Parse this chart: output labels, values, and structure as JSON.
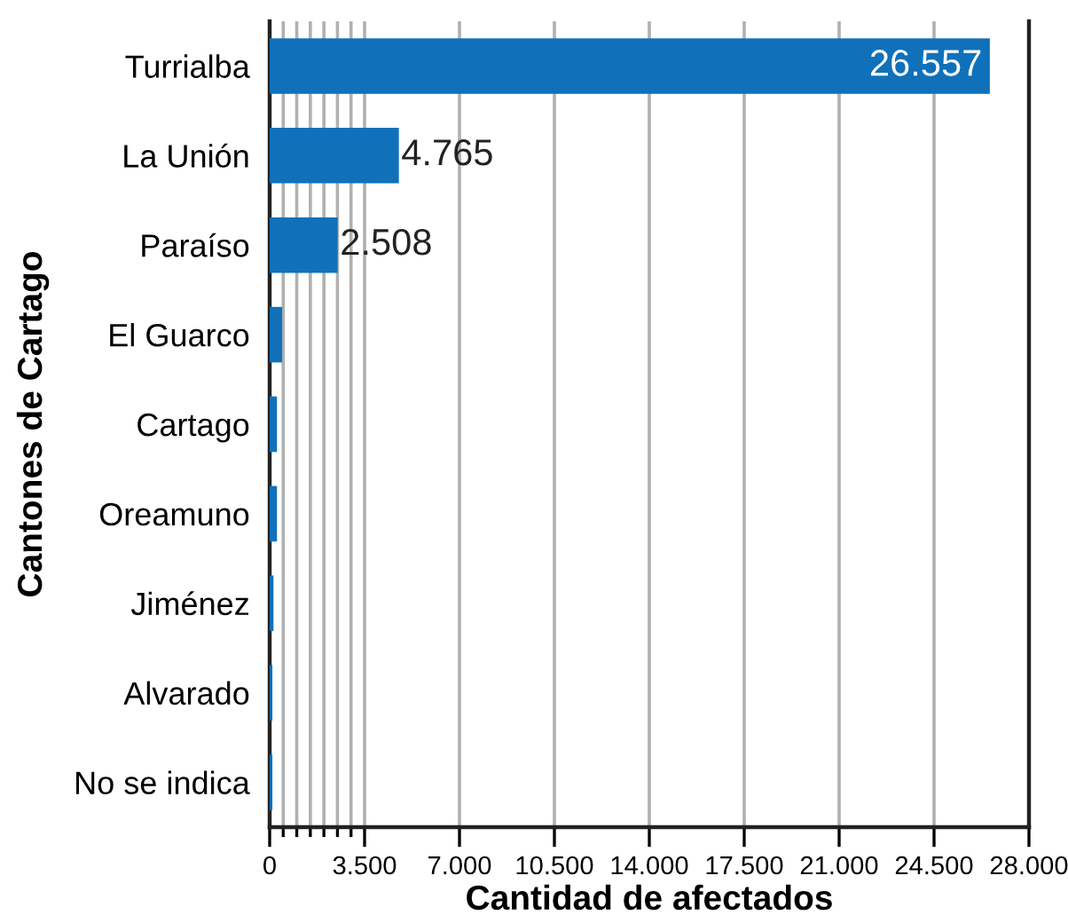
{
  "chart_data": {
    "type": "bar",
    "orientation": "horizontal",
    "xlabel": "Cantidad de afectados",
    "ylabel": "Cantones de Cartago",
    "categories": [
      "Turrialba",
      "La Unión",
      "Paraíso",
      "El Guarco",
      "Cartago",
      "Oreamuno",
      "Jiménez",
      "Alvarado",
      "No se indica"
    ],
    "values": [
      26557,
      4765,
      2508,
      460,
      270,
      270,
      140,
      100,
      100
    ],
    "value_labels": [
      "26.557",
      "4.765",
      "2.508",
      null,
      null,
      null,
      null,
      null,
      null
    ],
    "color": "#1071ba",
    "xlim": [
      0,
      28000
    ],
    "xticks": [
      0,
      {
        "value": 500,
        "label": null
      },
      {
        "value": 1000,
        "label": null
      },
      {
        "value": 1500,
        "label": null
      },
      {
        "value": 2000,
        "label": null
      },
      {
        "value": 2500,
        "label": null
      },
      {
        "value": 3000,
        "label": null
      },
      {
        "value": 3500,
        "label": "3.500"
      },
      {
        "value": 7000,
        "label": "7.000"
      },
      {
        "value": 10500,
        "label": "10.500"
      },
      {
        "value": 14000,
        "label": "14.000"
      },
      {
        "value": 17500,
        "label": "17.500"
      },
      {
        "value": 21000,
        "label": "21.000"
      },
      {
        "value": 24500,
        "label": "24.500"
      },
      {
        "value": 28000,
        "label": "28.000"
      }
    ],
    "grid": "x",
    "legend": false
  }
}
